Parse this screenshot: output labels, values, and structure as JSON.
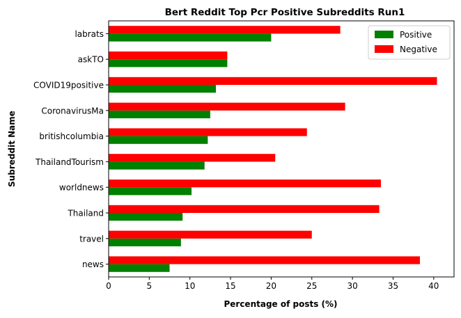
{
  "chart_data": {
    "type": "bar",
    "orientation": "horizontal",
    "title": "Bert Reddit Top Pcr Positive Subreddits Run1",
    "xlabel": "Percentage of posts (%)",
    "ylabel": "Subreddit Name",
    "xlim": [
      0,
      42.5
    ],
    "xticks": [
      0,
      5,
      10,
      15,
      20,
      25,
      30,
      35,
      40
    ],
    "categories": [
      "labrats",
      "askTO",
      "COVID19positive",
      "CoronavirusMa",
      "britishcolumbia",
      "ThailandTourism",
      "worldnews",
      "Thailand",
      "travel",
      "news"
    ],
    "series": [
      {
        "name": "Positive",
        "color": "#008000",
        "values": [
          20.0,
          14.6,
          13.2,
          12.5,
          12.2,
          11.8,
          10.2,
          9.1,
          8.9,
          7.5
        ]
      },
      {
        "name": "Negative",
        "color": "#ff0000",
        "values": [
          28.5,
          14.6,
          40.4,
          29.1,
          24.4,
          20.5,
          33.5,
          33.3,
          25.0,
          38.3
        ]
      }
    ],
    "legend_position": "top-right",
    "grid": false
  }
}
